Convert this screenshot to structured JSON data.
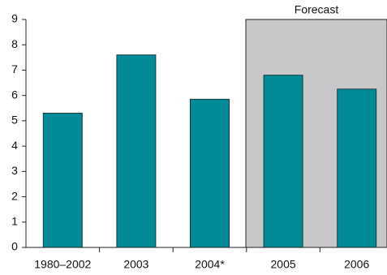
{
  "chart_data": {
    "type": "bar",
    "categories": [
      "1980–2002",
      "2003",
      "2004*",
      "2005",
      "2006"
    ],
    "values": [
      5.3,
      7.6,
      5.85,
      6.8,
      6.25
    ],
    "color": "#008b96",
    "annotation": "Forecast",
    "ylim": [
      0,
      9
    ],
    "yticks": [
      0,
      1,
      2,
      3,
      4,
      5,
      6,
      7,
      8,
      9
    ]
  }
}
